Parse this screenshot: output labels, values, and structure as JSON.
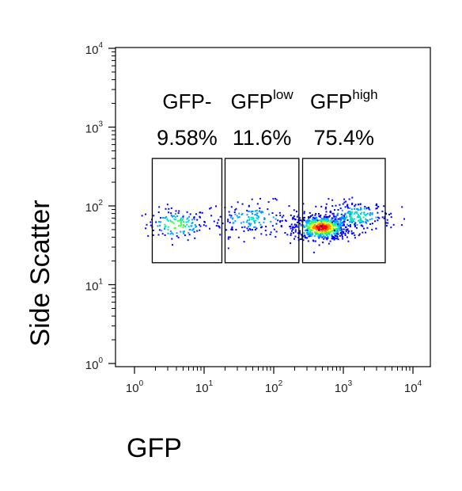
{
  "chart_data": {
    "type": "scatter",
    "xlabel": "GFP",
    "ylabel": "Side Scatter",
    "x_scale": "log",
    "y_scale": "log",
    "xlim": [
      1,
      10000
    ],
    "ylim": [
      1,
      10000
    ],
    "x_ticks": [
      {
        "base": "10",
        "exp": "0",
        "value": 1
      },
      {
        "base": "10",
        "exp": "1",
        "value": 10
      },
      {
        "base": "10",
        "exp": "2",
        "value": 100
      },
      {
        "base": "10",
        "exp": "3",
        "value": 1000
      },
      {
        "base": "10",
        "exp": "4",
        "value": 10000
      }
    ],
    "y_ticks": [
      {
        "base": "10",
        "exp": "0",
        "value": 1
      },
      {
        "base": "10",
        "exp": "1",
        "value": 10
      },
      {
        "base": "10",
        "exp": "2",
        "value": 100
      },
      {
        "base": "10",
        "exp": "3",
        "value": 1000
      },
      {
        "base": "10",
        "exp": "4",
        "value": 10000
      }
    ],
    "gates": [
      {
        "label": "GFP-",
        "superscript": "",
        "percent": "9.58%",
        "x_range": [
          1.8,
          18
        ],
        "y_range": [
          19,
          400
        ]
      },
      {
        "label": "GFP",
        "superscript": "low",
        "percent": "11.6%",
        "x_range": [
          20,
          230
        ],
        "y_range": [
          19,
          400
        ]
      },
      {
        "label": "GFP",
        "superscript": "high",
        "percent": "75.4%",
        "x_range": [
          260,
          4000
        ],
        "y_range": [
          19,
          400
        ]
      }
    ],
    "populations": [
      {
        "center": [
          4,
          60
        ],
        "x_spread": 0.22,
        "y_spread": 0.1,
        "count": 140,
        "peak": 0.55
      },
      {
        "center": [
          50,
          70
        ],
        "x_spread": 0.35,
        "y_spread": 0.11,
        "count": 180,
        "peak": 0.3
      },
      {
        "center": [
          480,
          55
        ],
        "x_spread": 0.2,
        "y_spread": 0.08,
        "count": 650,
        "peak": 1.0
      },
      {
        "center": [
          1500,
          75
        ],
        "x_spread": 0.25,
        "y_spread": 0.1,
        "count": 220,
        "peak": 0.4
      }
    ],
    "density_colors": [
      "#0000ff",
      "#00a0ff",
      "#00e0c0",
      "#40ff40",
      "#ffff00",
      "#ff8000",
      "#ff0000"
    ]
  }
}
